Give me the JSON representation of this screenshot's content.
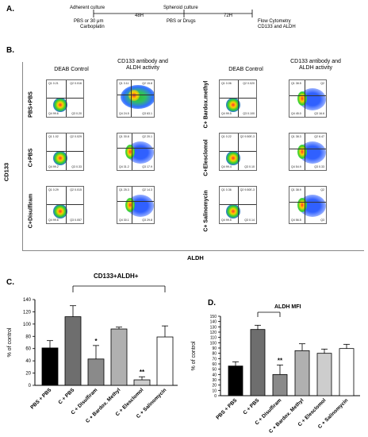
{
  "panel_a": {
    "letter": "A.",
    "step1": "Adherent culture",
    "step1_sub1": "PBS or 30 μm",
    "step1_sub2": "Carboplatin",
    "t1": "48H",
    "step2": "Spheroid culture",
    "step2_sub": "PBS or Drugs",
    "t2": "72H",
    "step3": "Flow Cytometry",
    "step3_sub": "CD133 and ALDH"
  },
  "panel_b": {
    "letter": "B.",
    "col_headers": [
      "DEAB Control",
      "CD133 antibody and ALDH activity",
      "DEAB Control",
      "CD133 antibody and ALDH activity"
    ],
    "rows_left": [
      "PBS+PBS",
      "C+PBS",
      "C+Disulfiram"
    ],
    "rows_right": [
      "C+ Bardox.methyl",
      "C+Elesclomol",
      "C+ Salinomycin"
    ],
    "y_axis": "CD133",
    "x_axis": "ALDH",
    "plots": [
      [
        "Q1 0.21",
        "Q2 0.016",
        "Q4 99.6",
        "Q3 0.20"
      ],
      [
        "Q1 3.11",
        "Q2 15.8",
        "Q4 24.5",
        "Q3 63.1"
      ],
      [
        "Q1 0.06",
        "Q2 0.020",
        "Q4 99.5",
        "Q3 0.100"
      ],
      [
        "Q1 38.5",
        "Q2",
        "Q4 45.0",
        "Q3 16.6"
      ],
      [
        "Q1 1.02",
        "Q2 0.029",
        "Q4 99.2",
        "Q3 0.33"
      ],
      [
        "Q1 30.8",
        "Q2 20.1",
        "Q4 31.2",
        "Q3 17.9"
      ],
      [
        "Q1 0.22",
        "Q2 9.50E-3",
        "Q4 99.4",
        "Q3 0.10"
      ],
      [
        "Q1 38.3",
        "Q2 6.47",
        "Q4 54.9",
        "Q3 0.33"
      ],
      [
        "Q1 0.29",
        "Q2 0.015",
        "Q4 99.6",
        "Q3 0.057"
      ],
      [
        "Q1 25.3",
        "Q2 14.3",
        "Q4 30.1",
        "Q3 29.8"
      ],
      [
        "Q1 0.36",
        "Q2 9.50E-3",
        "Q4 99.5",
        "Q3 0.14"
      ],
      [
        "Q1 38.9",
        "Q2",
        "Q4 56.5",
        "Q3"
      ]
    ]
  },
  "chart_data": [
    {
      "type": "bar",
      "panel": "C.",
      "title": "CD133+ALDH+",
      "ylabel": "% of control",
      "ylim": [
        0,
        140
      ],
      "yticks": [
        0,
        20,
        40,
        60,
        80,
        100,
        120,
        140
      ],
      "categories": [
        "PBS + PBS",
        "C + PBS",
        "C + Disulfiram",
        "C + Bardox. Methyl",
        "C + Elesclomol",
        "C + Salinomycin"
      ],
      "values": [
        61,
        112,
        43,
        92,
        9,
        79
      ],
      "errors": [
        12,
        18,
        22,
        3,
        5,
        18
      ],
      "colors": [
        "#000000",
        "#6e6e6e",
        "#8a8a8a",
        "#b0b0b0",
        "#cdcdcd",
        "#ffffff"
      ],
      "significance": [
        "",
        "",
        "*",
        "",
        "**",
        ""
      ]
    },
    {
      "type": "bar",
      "panel": "D.",
      "title": "ALDH MFI",
      "ylabel": "% of control",
      "ylim": [
        0,
        150
      ],
      "yticks": [
        0,
        10,
        20,
        30,
        40,
        50,
        60,
        70,
        80,
        90,
        100,
        110,
        120,
        130,
        140,
        150
      ],
      "categories": [
        "PBS + PBS",
        "C + PBS",
        "C + Disulfiram",
        "C + Bardox. Methyl",
        "C + Elesclomol",
        "C + Salinomycin"
      ],
      "values": [
        56,
        125,
        40,
        85,
        80,
        89
      ],
      "errors": [
        8,
        8,
        18,
        13,
        8,
        8
      ],
      "colors": [
        "#000000",
        "#6e6e6e",
        "#8a8a8a",
        "#b0b0b0",
        "#cdcdcd",
        "#ffffff"
      ],
      "significance": [
        "",
        "",
        "**",
        "",
        "",
        ""
      ]
    }
  ]
}
